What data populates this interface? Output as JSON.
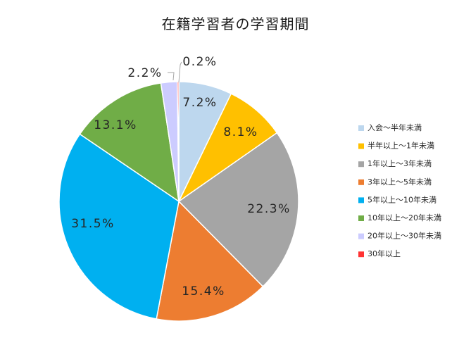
{
  "chart_data": {
    "type": "pie",
    "title": "在籍学習者の学習期間",
    "legend_position": "right",
    "slices": [
      {
        "label": "入会～半年未満",
        "value": 7.2,
        "display": "7.2%",
        "color": "#BDD7EE"
      },
      {
        "label": "半年以上～1年未満",
        "value": 8.1,
        "display": "8.1%",
        "color": "#FFC000"
      },
      {
        "label": "1年以上～3年未満",
        "value": 22.3,
        "display": "22.3%",
        "color": "#A5A5A5"
      },
      {
        "label": "3年以上～5年未満",
        "value": 15.4,
        "display": "15.4%",
        "color": "#ED7D31"
      },
      {
        "label": "5年以上～10年未満",
        "value": 31.5,
        "display": "31.5%",
        "color": "#00B0F0"
      },
      {
        "label": "10年以上～20年未満",
        "value": 13.1,
        "display": "13.1%",
        "color": "#70AD47"
      },
      {
        "label": "20年以上～30年未満",
        "value": 2.2,
        "display": "2.2%",
        "color": "#CCCCFF"
      },
      {
        "label": "30年以上",
        "value": 0.2,
        "display": "0.2%",
        "color": "#FF3333"
      }
    ]
  }
}
